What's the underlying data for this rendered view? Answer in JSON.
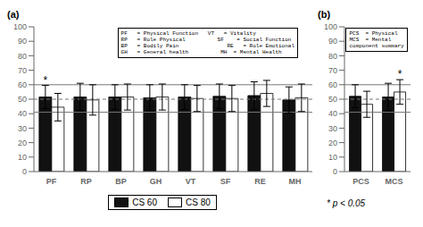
{
  "chart_data": [
    {
      "type": "bar",
      "title": "(a)",
      "categories": [
        "PF",
        "RP",
        "BP",
        "GH",
        "VT",
        "SF",
        "RE",
        "MH"
      ],
      "series": [
        {
          "name": "CS 60",
          "color": "#111111",
          "values": [
            51.5,
            51.5,
            51.5,
            51.0,
            51.5,
            52.0,
            52.5,
            49.5
          ],
          "errors": [
            8.0,
            9.5,
            8.5,
            9.0,
            8.5,
            8.5,
            9.5,
            9.0
          ]
        },
        {
          "name": "CS 80",
          "color": "#ffffff",
          "values": [
            44.5,
            49.5,
            51.5,
            51.5,
            50.5,
            50.5,
            54.0,
            51.0
          ],
          "errors": [
            9.5,
            10.5,
            9.0,
            9.0,
            9.0,
            9.0,
            9.0,
            9.5
          ]
        }
      ],
      "reference_lines": [
        {
          "value": 60,
          "line_style": "solid",
          "color": "#777777"
        },
        {
          "value": 41,
          "line_style": "solid",
          "color": "#777777"
        },
        {
          "value": 50,
          "line_style": "dashed",
          "color": "#777777"
        }
      ],
      "ylim": [
        0,
        100
      ],
      "yticks": [
        0,
        10,
        20,
        30,
        40,
        50,
        60,
        70,
        80,
        90,
        100
      ],
      "grid": false,
      "legend": "bottom",
      "annotations": [
        {
          "text": "*",
          "category": "PF",
          "series": "CS 60"
        }
      ],
      "text_box": [
        "PF   = Physical Function   VT   = Vitality",
        "RP   = Role Physical          SF    = Social Function",
        "BP   = Bodily Pain               RE   = Role Emotional",
        "GH   = General health          MH  = Mental Health"
      ]
    },
    {
      "type": "bar",
      "title": "(b)",
      "categories": [
        "PCS",
        "MCS"
      ],
      "series": [
        {
          "name": "CS 60",
          "color": "#111111",
          "values": [
            52.0,
            51.5
          ],
          "errors": [
            8.0,
            9.5
          ]
        },
        {
          "name": "CS 80",
          "color": "#ffffff",
          "values": [
            46.5,
            55.0
          ],
          "errors": [
            9.0,
            8.5
          ]
        }
      ],
      "reference_lines": [
        {
          "value": 60,
          "line_style": "solid",
          "color": "#777777"
        },
        {
          "value": 41,
          "line_style": "solid",
          "color": "#777777"
        },
        {
          "value": 50,
          "line_style": "dashed",
          "color": "#777777"
        }
      ],
      "ylim": [
        0,
        100
      ],
      "yticks": [
        0,
        10,
        20,
        30,
        40,
        50,
        60,
        70,
        80,
        90,
        100
      ],
      "grid": false,
      "annotations": [
        {
          "text": "*",
          "category": "MCS",
          "series": "CS 80"
        }
      ],
      "text_box": [
        "PCS  = Physical",
        "MCS  = Mental",
        "component summary"
      ],
      "footnote": "* p < 0.05"
    }
  ]
}
